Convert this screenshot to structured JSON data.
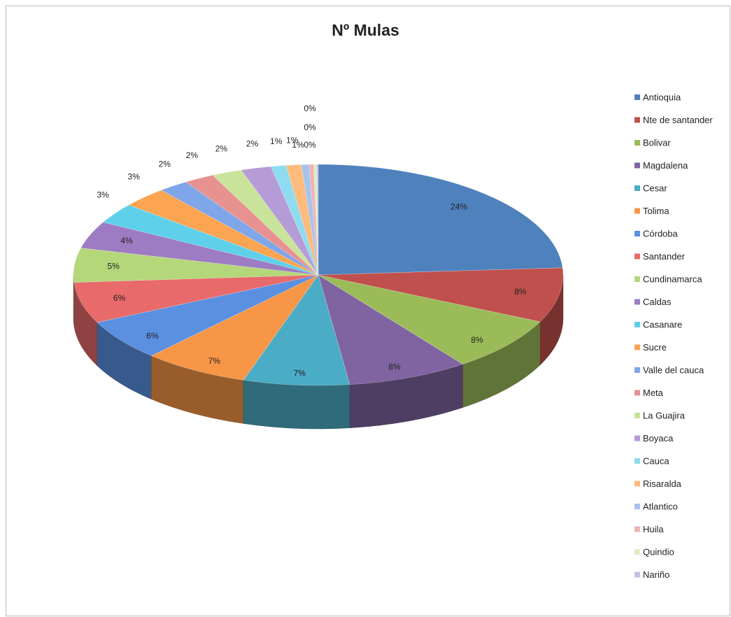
{
  "chart_data": {
    "type": "pie",
    "title": "Nº Mulas",
    "style": "3d-exploded-top",
    "legend_position": "right",
    "categories": [
      "Antioquia",
      "Nte de santander",
      "Bolivar",
      "Magdalena",
      "Cesar",
      "Tolima",
      "Córdoba",
      "Santander",
      "Cundinamarca",
      "Caldas",
      "Casanare",
      "Sucre",
      "Valle del cauca",
      "Meta",
      "La Guajira",
      "Boyaca",
      "Cauca",
      "Risaralda",
      "Atlantico",
      "Huila",
      "Quindio",
      "Nariño"
    ],
    "values": [
      24,
      8,
      8,
      8,
      7,
      7,
      6,
      6,
      5,
      4,
      3,
      3,
      2,
      2,
      2,
      2,
      1,
      1,
      0.5,
      0.3,
      0.2,
      0.1
    ],
    "data_labels": [
      "24%",
      "8%",
      "8%",
      "8%",
      "7%",
      "7%",
      "6%",
      "6%",
      "5%",
      "4%",
      "3%",
      "3%",
      "2%",
      "2%",
      "2%",
      "2%",
      "1%",
      "1%",
      "1%",
      "0%",
      "0%",
      "0%"
    ],
    "colors": [
      "#4f81bd",
      "#c0504d",
      "#9bbb59",
      "#8064a2",
      "#4bacc6",
      "#f79646",
      "#5b8fe0",
      "#e86a6a",
      "#b4d77a",
      "#9d7cc3",
      "#5fd0ea",
      "#fba452",
      "#7fa6e8",
      "#e89191",
      "#c9e39a",
      "#b69cd6",
      "#8fdcf0",
      "#fdbb7d",
      "#a9c4ec",
      "#efb3b3",
      "#dcedbf",
      "#cbbde4"
    ]
  }
}
